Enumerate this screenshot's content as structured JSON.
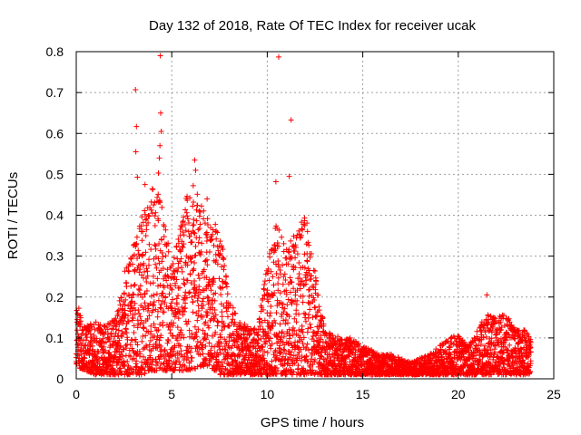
{
  "chart_data": {
    "type": "scatter",
    "title": "Day 132 of 2018, Rate Of TEC Index for receiver ucak",
    "xlabel": "GPS time / hours",
    "ylabel": "ROTI / TECUs",
    "xlim": [
      0,
      25
    ],
    "ylim": [
      0,
      0.8
    ],
    "xticks": [
      0,
      5,
      10,
      15,
      20,
      25
    ],
    "yticks": [
      0,
      0.1,
      0.2,
      0.3,
      0.4,
      0.5,
      0.6,
      0.7,
      0.8
    ],
    "xtick_labels": [
      "0",
      "5",
      "10",
      "15",
      "20",
      "25"
    ],
    "ytick_labels": [
      "0",
      "0.1",
      "0.2",
      "0.3",
      "0.4",
      "0.5",
      "0.6",
      "0.7",
      "0.8"
    ],
    "grid": true,
    "marker": "+",
    "series": [
      {
        "name": "ROTI",
        "color": "#ff0000",
        "envelope": {
          "x": [
            0,
            0.5,
            1,
            1.5,
            2,
            2.5,
            3,
            3.5,
            4,
            4.5,
            5,
            5.5,
            6,
            6.5,
            7,
            7.5,
            8,
            8.5,
            9,
            9.5,
            10,
            10.5,
            11,
            11.5,
            12,
            12.5,
            13,
            13.5,
            14,
            14.5,
            15,
            15.5,
            16,
            16.5,
            17,
            17.5,
            18,
            18.5,
            19,
            19.5,
            20,
            20.5,
            21,
            21.5,
            22,
            22.5,
            23,
            23.5,
            23.8
          ],
          "upper": [
            0.19,
            0.13,
            0.14,
            0.13,
            0.15,
            0.26,
            0.34,
            0.42,
            0.47,
            0.45,
            0.28,
            0.38,
            0.51,
            0.44,
            0.38,
            0.38,
            0.2,
            0.14,
            0.13,
            0.12,
            0.29,
            0.4,
            0.32,
            0.36,
            0.41,
            0.26,
            0.12,
            0.11,
            0.1,
            0.1,
            0.08,
            0.07,
            0.06,
            0.06,
            0.05,
            0.04,
            0.05,
            0.06,
            0.08,
            0.1,
            0.11,
            0.08,
            0.12,
            0.16,
            0.15,
            0.16,
            0.12,
            0.12,
            0.1
          ],
          "lower": [
            0.03,
            0.02,
            0.01,
            0.01,
            0.01,
            0.01,
            0.01,
            0.01,
            0.02,
            0.02,
            0.02,
            0.02,
            0.02,
            0.03,
            0.03,
            0.01,
            0.01,
            0.01,
            0.01,
            0.01,
            0.01,
            0.01,
            0.01,
            0.01,
            0.01,
            0.01,
            0.01,
            0.01,
            0.01,
            0.01,
            0.01,
            0.01,
            0.01,
            0.01,
            0.01,
            0.01,
            0.01,
            0.01,
            0.01,
            0.01,
            0.01,
            0.01,
            0.01,
            0.01,
            0.01,
            0.01,
            0.01,
            0.01,
            0.01
          ]
        },
        "outliers": [
          {
            "x": 3.1,
            "y": 0.707
          },
          {
            "x": 3.15,
            "y": 0.617
          },
          {
            "x": 3.12,
            "y": 0.555
          },
          {
            "x": 3.2,
            "y": 0.493
          },
          {
            "x": 4.4,
            "y": 0.79
          },
          {
            "x": 4.42,
            "y": 0.65
          },
          {
            "x": 4.45,
            "y": 0.605
          },
          {
            "x": 4.38,
            "y": 0.57
          },
          {
            "x": 4.35,
            "y": 0.54
          },
          {
            "x": 4.3,
            "y": 0.503
          },
          {
            "x": 3.6,
            "y": 0.475
          },
          {
            "x": 6.2,
            "y": 0.535
          },
          {
            "x": 6.25,
            "y": 0.51
          },
          {
            "x": 6.85,
            "y": 0.44
          },
          {
            "x": 10.45,
            "y": 0.482
          },
          {
            "x": 10.6,
            "y": 0.787
          },
          {
            "x": 11.25,
            "y": 0.633
          },
          {
            "x": 11.15,
            "y": 0.495
          },
          {
            "x": 21.5,
            "y": 0.205
          }
        ]
      }
    ]
  }
}
